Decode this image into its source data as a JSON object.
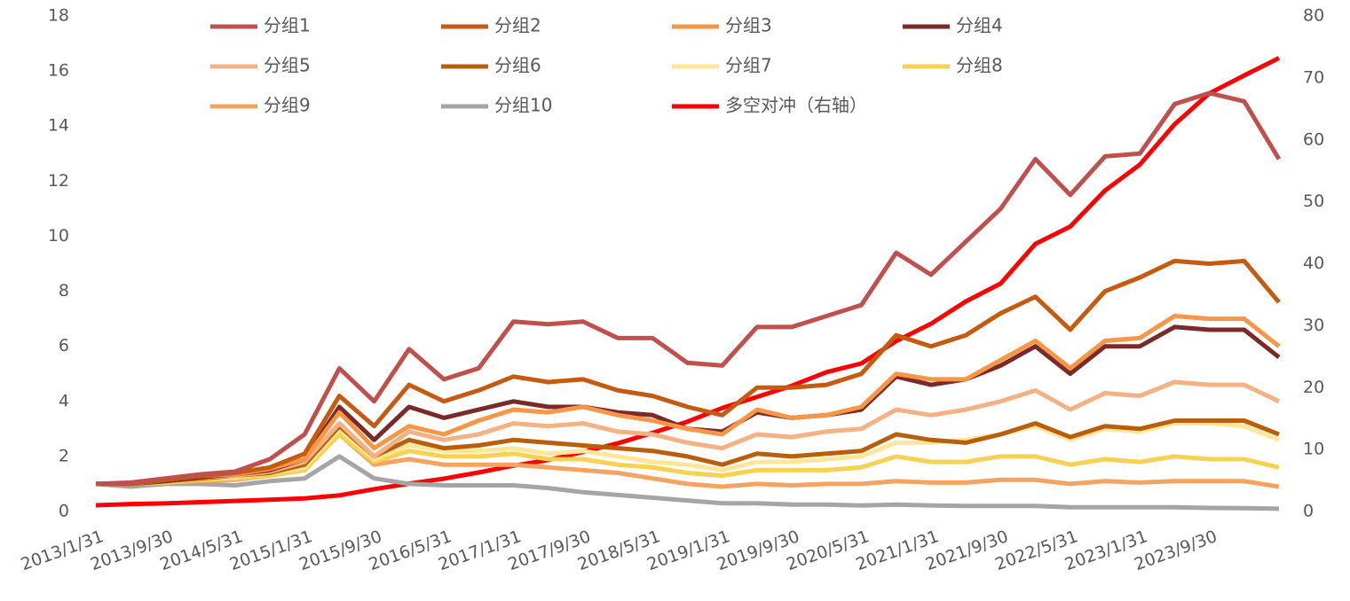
{
  "chart_data": {
    "type": "line",
    "legend": "top",
    "grid": false,
    "categories": [
      "2013/1/31",
      null,
      "2013/9/30",
      null,
      "2014/5/31",
      null,
      "2015/1/31",
      null,
      "2015/9/30",
      null,
      "2016/5/31",
      null,
      "2017/1/31",
      null,
      "2017/9/30",
      null,
      "2018/5/31",
      null,
      "2019/1/31",
      null,
      "2019/9/30",
      null,
      "2020/5/31",
      null,
      "2021/1/31",
      null,
      "2021/9/30",
      null,
      "2022/5/31",
      null,
      "2023/1/31",
      null,
      "2023/9/30",
      null,
      null
    ],
    "ylim": [
      0,
      18
    ],
    "yticks": [
      0,
      2,
      4,
      6,
      8,
      10,
      12,
      14,
      16,
      18
    ],
    "y2lim": [
      0,
      80
    ],
    "y2ticks": [
      0,
      10,
      20,
      30,
      40,
      50,
      60,
      70,
      80
    ],
    "series": [
      {
        "name": "分组1",
        "color": "#c0504d",
        "values": [
          1.0,
          1.05,
          1.2,
          1.35,
          1.45,
          1.9,
          2.8,
          5.2,
          4.0,
          5.9,
          4.8,
          5.2,
          6.9,
          6.8,
          6.9,
          6.3,
          6.3,
          5.4,
          5.3,
          6.7,
          6.7,
          7.1,
          7.5,
          9.4,
          8.6,
          9.8,
          11.0,
          12.8,
          11.5,
          12.9,
          13.0,
          14.8,
          15.2,
          14.9,
          12.8
        ]
      },
      {
        "name": "分组2",
        "color": "#c55a11",
        "values": [
          1.0,
          1.0,
          1.15,
          1.3,
          1.4,
          1.6,
          2.1,
          4.2,
          3.1,
          4.6,
          4.0,
          4.4,
          4.9,
          4.7,
          4.8,
          4.4,
          4.2,
          3.8,
          3.5,
          4.5,
          4.5,
          4.6,
          5.0,
          6.4,
          6.0,
          6.4,
          7.2,
          7.8,
          6.6,
          8.0,
          8.5,
          9.1,
          9.0,
          9.1,
          7.6
        ]
      },
      {
        "name": "分组3",
        "color": "#f79646",
        "values": [
          1.0,
          1.0,
          1.15,
          1.3,
          1.35,
          1.55,
          1.9,
          3.6,
          2.3,
          3.1,
          2.8,
          3.3,
          3.7,
          3.6,
          3.8,
          3.5,
          3.3,
          3.0,
          2.8,
          3.7,
          3.4,
          3.5,
          3.8,
          5.0,
          4.8,
          4.8,
          5.5,
          6.2,
          5.2,
          6.2,
          6.3,
          7.1,
          7.0,
          7.0,
          6.0
        ]
      },
      {
        "name": "分组4",
        "color": "#7b2a2a",
        "values": [
          1.0,
          1.0,
          1.1,
          1.25,
          1.35,
          1.5,
          1.9,
          3.8,
          2.6,
          3.8,
          3.4,
          3.7,
          4.0,
          3.8,
          3.8,
          3.6,
          3.5,
          3.0,
          2.9,
          3.6,
          3.4,
          3.5,
          3.7,
          4.9,
          4.6,
          4.8,
          5.3,
          6.0,
          5.0,
          6.0,
          6.0,
          6.7,
          6.6,
          6.6,
          5.6
        ]
      },
      {
        "name": "分组5",
        "color": "#f4b183",
        "values": [
          1.0,
          1.0,
          1.1,
          1.25,
          1.3,
          1.45,
          1.8,
          3.2,
          2.0,
          2.9,
          2.6,
          2.8,
          3.2,
          3.1,
          3.2,
          2.9,
          2.8,
          2.5,
          2.3,
          2.8,
          2.7,
          2.9,
          3.0,
          3.7,
          3.5,
          3.7,
          4.0,
          4.4,
          3.7,
          4.3,
          4.2,
          4.7,
          4.6,
          4.6,
          4.0
        ]
      },
      {
        "name": "分组6",
        "color": "#b85f0e",
        "values": [
          1.0,
          1.0,
          1.1,
          1.2,
          1.3,
          1.4,
          1.7,
          3.1,
          2.0,
          2.6,
          2.3,
          2.4,
          2.6,
          2.5,
          2.4,
          2.3,
          2.2,
          2.0,
          1.7,
          2.1,
          2.0,
          2.1,
          2.2,
          2.8,
          2.6,
          2.5,
          2.8,
          3.2,
          2.7,
          3.1,
          3.0,
          3.3,
          3.3,
          3.3,
          2.8
        ]
      },
      {
        "name": "分组7",
        "color": "#ffe699",
        "values": [
          1.0,
          1.0,
          1.1,
          1.2,
          1.25,
          1.4,
          1.6,
          3.0,
          1.9,
          2.4,
          2.2,
          2.2,
          2.3,
          2.1,
          2.2,
          2.0,
          1.8,
          1.7,
          1.5,
          1.8,
          1.8,
          1.9,
          2.0,
          2.5,
          2.5,
          2.6,
          2.8,
          3.1,
          2.6,
          3.0,
          2.9,
          3.2,
          3.2,
          3.1,
          2.6
        ]
      },
      {
        "name": "分组8",
        "color": "#f7d152",
        "values": [
          1.0,
          1.0,
          1.05,
          1.15,
          1.2,
          1.3,
          1.5,
          2.8,
          1.8,
          2.2,
          2.0,
          2.0,
          2.1,
          1.9,
          1.9,
          1.7,
          1.6,
          1.4,
          1.3,
          1.5,
          1.5,
          1.5,
          1.6,
          2.0,
          1.8,
          1.8,
          2.0,
          2.0,
          1.7,
          1.9,
          1.8,
          2.0,
          1.9,
          1.9,
          1.6
        ]
      },
      {
        "name": "分组9",
        "color": "#f4a460",
        "values": [
          1.0,
          1.0,
          1.05,
          1.1,
          1.15,
          1.3,
          1.5,
          2.8,
          1.7,
          1.9,
          1.7,
          1.7,
          1.7,
          1.6,
          1.5,
          1.4,
          1.2,
          1.0,
          0.9,
          1.0,
          0.95,
          1.0,
          1.0,
          1.1,
          1.05,
          1.05,
          1.15,
          1.15,
          1.0,
          1.1,
          1.05,
          1.1,
          1.1,
          1.1,
          0.9
        ]
      },
      {
        "name": "分组10",
        "color": "#a5a5a5",
        "values": [
          1.0,
          0.9,
          1.0,
          1.0,
          0.95,
          1.1,
          1.2,
          2.0,
          1.2,
          1.0,
          0.95,
          0.95,
          0.95,
          0.85,
          0.7,
          0.6,
          0.5,
          0.4,
          0.3,
          0.3,
          0.25,
          0.25,
          0.22,
          0.25,
          0.22,
          0.2,
          0.2,
          0.2,
          0.15,
          0.15,
          0.15,
          0.15,
          0.13,
          0.12,
          0.1
        ]
      },
      {
        "name": "多空对冲（右轴）",
        "color": "#ff0000",
        "axis": "y2",
        "values": [
          1.0,
          1.2,
          1.3,
          1.5,
          1.7,
          1.9,
          2.1,
          2.6,
          3.6,
          4.5,
          5.3,
          6.3,
          7.4,
          8.3,
          9.6,
          11.0,
          12.7,
          14.5,
          16.7,
          18.5,
          20.3,
          22.5,
          23.9,
          27.5,
          30.3,
          33.9,
          36.8,
          43.2,
          46.0,
          51.8,
          56.0,
          62.5,
          67.5,
          70.4,
          73.2
        ]
      }
    ]
  }
}
